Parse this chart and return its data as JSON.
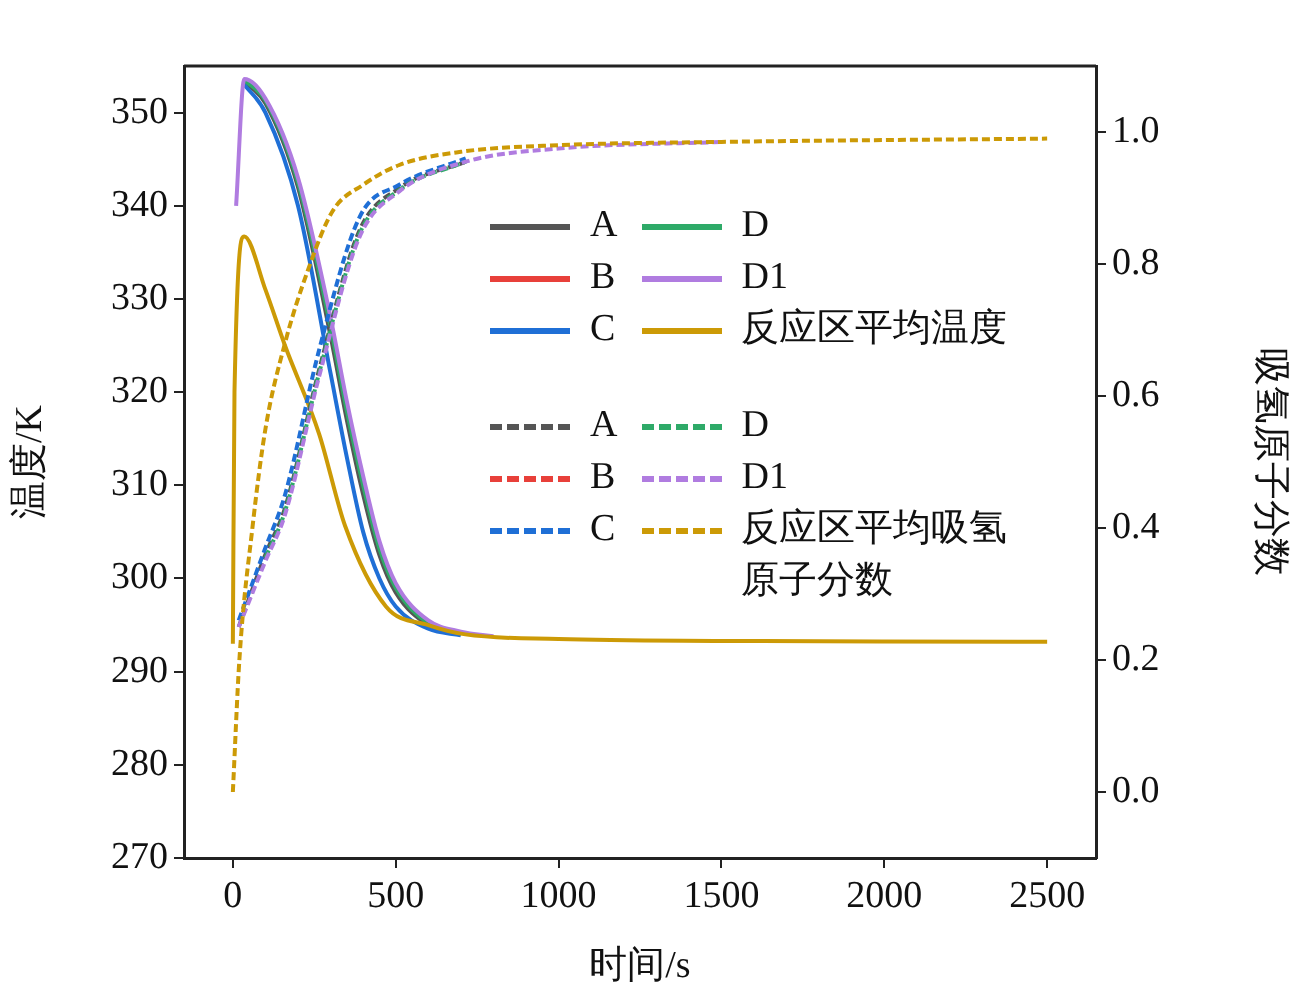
{
  "chart_data": {
    "type": "line",
    "xlabel": "时间/s",
    "ylabel": "温度/K",
    "y2label": "吸氢原子分数",
    "xlim": [
      -150,
      2650
    ],
    "xticks": [
      0,
      500,
      1000,
      1500,
      2000,
      2500
    ],
    "ylim": [
      270,
      355
    ],
    "yticks": [
      270,
      280,
      290,
      300,
      310,
      320,
      330,
      340,
      350
    ],
    "y2lim": [
      -0.1,
      1.1
    ],
    "y2ticks": [
      {
        "value": 0,
        "label": "0.0"
      },
      {
        "value": 0.2,
        "label": "0.2"
      },
      {
        "value": 0.4,
        "label": "0.4"
      },
      {
        "value": 0.6,
        "label": "0.6"
      },
      {
        "value": 0.8,
        "label": "0.8"
      },
      {
        "value": 1,
        "label": "1.0"
      }
    ],
    "grid": false,
    "legend": "right",
    "marker": "none",
    "series": [
      {
        "name": "A",
        "color": "#555555",
        "line_style": "solid",
        "x": [
          35,
          100,
          200,
          300,
          350,
          400,
          450,
          500,
          600,
          700
        ],
        "values": [
          353.3,
          351,
          342,
          326,
          317,
          309,
          302.5,
          298.5,
          295,
          294.1
        ]
      },
      {
        "name": "B",
        "color": "#e8403a",
        "line_style": "solid"
      },
      {
        "name": "C",
        "color": "#1f6fd6",
        "line_style": "solid",
        "x": [
          35,
          100,
          200,
          300,
          350,
          400,
          450,
          500,
          600,
          700
        ],
        "values": [
          353,
          350,
          340,
          322,
          313,
          305,
          300,
          297,
          294.6,
          293.9
        ]
      },
      {
        "name": "D",
        "color": "#2eaa68",
        "line_style": "solid",
        "x": [
          35,
          100,
          200,
          300,
          350,
          400,
          450,
          500,
          600,
          700
        ],
        "values": [
          353.5,
          351.3,
          342.5,
          327,
          318,
          310,
          303.2,
          299,
          295.2,
          294.2
        ]
      },
      {
        "name": "D1",
        "color": "#b07ce0",
        "line_style": "solid",
        "x": [
          10,
          35,
          100,
          200,
          300,
          350,
          400,
          450,
          500,
          600,
          700,
          800
        ],
        "values": [
          340,
          353.6,
          351.5,
          343,
          328,
          319,
          311,
          304,
          299.5,
          295.5,
          294.3,
          293.8
        ]
      },
      {
        "name": "反应区平均温度",
        "color": "#cc9a06",
        "line_style": "solid",
        "x": [
          0,
          5,
          35,
          100,
          160,
          265,
          345,
          470,
          600,
          714,
          1000,
          1500,
          2500
        ],
        "values": [
          293,
          320,
          336.7,
          331,
          325,
          315.5,
          305.6,
          297,
          295,
          294,
          293.5,
          293.3,
          293.2
        ]
      },
      {
        "name": "A",
        "color": "#555555",
        "line_style": "dashed",
        "axis": "y2",
        "x": [
          18,
          100,
          160,
          265,
          388,
          511,
          715
        ],
        "values": [
          0.25,
          0.36,
          0.43,
          0.64,
          0.85,
          0.915,
          0.955
        ]
      },
      {
        "name": "B",
        "color": "#e8403a",
        "line_style": "dashed",
        "axis": "y2"
      },
      {
        "name": "C",
        "color": "#1f6fd6",
        "line_style": "dashed",
        "axis": "y2",
        "x": [
          18,
          100,
          160,
          265,
          388,
          511,
          715
        ],
        "values": [
          0.26,
          0.37,
          0.45,
          0.67,
          0.87,
          0.92,
          0.96
        ]
      },
      {
        "name": "D",
        "color": "#2eaa68",
        "line_style": "dashed",
        "axis": "y2",
        "x": [
          100,
          160,
          265,
          388,
          511,
          715
        ],
        "values": [
          0.355,
          0.425,
          0.635,
          0.845,
          0.912,
          0.955
        ]
      },
      {
        "name": "D1",
        "color": "#b07ce0",
        "line_style": "dashed",
        "axis": "y2",
        "x": [
          18,
          100,
          160,
          265,
          388,
          511,
          715,
          1000,
          1500
        ],
        "values": [
          0.25,
          0.35,
          0.42,
          0.63,
          0.84,
          0.91,
          0.955,
          0.975,
          0.985
        ]
      },
      {
        "name": "反应区平均吸氢原子分数",
        "color": "#cc9a06",
        "line_style": "dashed",
        "axis": "y2",
        "x": [
          0,
          20,
          60,
          100,
          160,
          230,
          306,
          400,
          511,
          700,
          1000,
          1500,
          2500
        ],
        "values": [
          0,
          0.2,
          0.4,
          0.55,
          0.68,
          0.79,
          0.88,
          0.92,
          0.95,
          0.97,
          0.98,
          0.985,
          0.99
        ]
      }
    ]
  }
}
